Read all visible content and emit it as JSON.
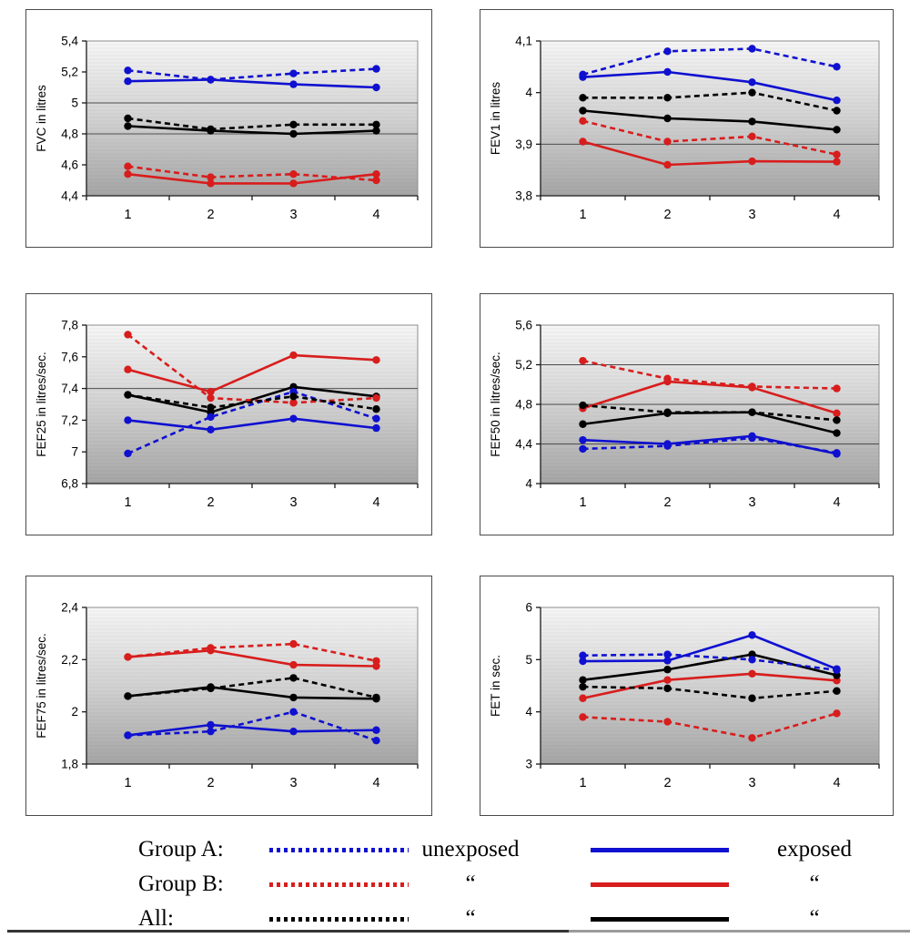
{
  "colors": {
    "group_a": "#0f10d0",
    "group_b": "#d81d1d",
    "all": "#000000",
    "grid": "#4d4d4d",
    "axis": "#1a1a1a",
    "plot_border": "#8c8c8c",
    "plot_top": "#f6f6f6",
    "plot_mid": "#d2d2d2",
    "plot_bottom": "#a5a5a5"
  },
  "legend": {
    "rows": [
      {
        "group_label": "Group A:",
        "dashed_label": "unexposed",
        "solid_label": "exposed",
        "color_key": "group_a"
      },
      {
        "group_label": "Group B:",
        "dashed_label": "“",
        "solid_label": "“",
        "color_key": "group_b"
      },
      {
        "group_label": "All:",
        "dashed_label": "“",
        "solid_label": "“",
        "color_key": "all"
      }
    ]
  },
  "chart_data": [
    {
      "type": "line",
      "id": "fvc",
      "title": "",
      "xlabel": "",
      "ylabel": "FVC in litres",
      "ylim": [
        4.4,
        5.4
      ],
      "yticks": [
        {
          "v": 4.4,
          "label": "4,4"
        },
        {
          "v": 4.6,
          "label": "4,6"
        },
        {
          "v": 4.8,
          "label": "4,8"
        },
        {
          "v": 5.0,
          "label": "5"
        },
        {
          "v": 5.2,
          "label": "5,2"
        },
        {
          "v": 5.4,
          "label": "5,4"
        }
      ],
      "gridlines": [
        4.8,
        5.0
      ],
      "categories": [
        "1",
        "2",
        "3",
        "4"
      ],
      "series": [
        {
          "name": "Group A unexposed",
          "color_key": "group_a",
          "style": "dashed",
          "values": [
            5.21,
            5.15,
            5.19,
            5.22
          ]
        },
        {
          "name": "Group A exposed",
          "color_key": "group_a",
          "style": "solid",
          "values": [
            5.14,
            5.15,
            5.12,
            5.1
          ]
        },
        {
          "name": "Group B unexposed",
          "color_key": "group_b",
          "style": "dashed",
          "values": [
            4.59,
            4.52,
            4.54,
            4.5
          ]
        },
        {
          "name": "Group B exposed",
          "color_key": "group_b",
          "style": "solid",
          "values": [
            4.54,
            4.48,
            4.48,
            4.54
          ]
        },
        {
          "name": "All unexposed",
          "color_key": "all",
          "style": "dashed",
          "values": [
            4.9,
            4.83,
            4.86,
            4.86
          ]
        },
        {
          "name": "All exposed",
          "color_key": "all",
          "style": "solid",
          "values": [
            4.85,
            4.82,
            4.8,
            4.82
          ]
        }
      ]
    },
    {
      "type": "line",
      "id": "fev1",
      "title": "",
      "xlabel": "",
      "ylabel": "FEV1 in litres",
      "ylim": [
        3.8,
        4.1
      ],
      "yticks": [
        {
          "v": 3.8,
          "label": "3,8"
        },
        {
          "v": 3.9,
          "label": "3,9"
        },
        {
          "v": 4.0,
          "label": "4"
        },
        {
          "v": 4.1,
          "label": "4,1"
        }
      ],
      "gridlines": [
        3.9
      ],
      "categories": [
        "1",
        "2",
        "3",
        "4"
      ],
      "series": [
        {
          "name": "Group A unexposed",
          "color_key": "group_a",
          "style": "dashed",
          "values": [
            4.035,
            4.08,
            4.085,
            4.05
          ]
        },
        {
          "name": "Group A exposed",
          "color_key": "group_a",
          "style": "solid",
          "values": [
            4.03,
            4.04,
            4.02,
            3.985
          ]
        },
        {
          "name": "Group B unexposed",
          "color_key": "group_b",
          "style": "dashed",
          "values": [
            3.945,
            3.905,
            3.915,
            3.88
          ]
        },
        {
          "name": "Group B exposed",
          "color_key": "group_b",
          "style": "solid",
          "values": [
            3.905,
            3.86,
            3.867,
            3.866
          ]
        },
        {
          "name": "All unexposed",
          "color_key": "all",
          "style": "dashed",
          "values": [
            3.99,
            3.99,
            4.0,
            3.965
          ]
        },
        {
          "name": "All exposed",
          "color_key": "all",
          "style": "solid",
          "values": [
            3.965,
            3.95,
            3.944,
            3.928
          ]
        }
      ]
    },
    {
      "type": "line",
      "id": "fef25",
      "title": "",
      "xlabel": "",
      "ylabel": "FEF25 in litres/sec.",
      "ylim": [
        6.8,
        7.8
      ],
      "yticks": [
        {
          "v": 6.8,
          "label": "6,8"
        },
        {
          "v": 7.0,
          "label": "7"
        },
        {
          "v": 7.2,
          "label": "7,2"
        },
        {
          "v": 7.4,
          "label": "7,4"
        },
        {
          "v": 7.6,
          "label": "7,6"
        },
        {
          "v": 7.8,
          "label": "7,8"
        }
      ],
      "gridlines": [
        7.4
      ],
      "categories": [
        "1",
        "2",
        "3",
        "4"
      ],
      "series": [
        {
          "name": "Group A unexposed",
          "color_key": "group_a",
          "style": "dashed",
          "values": [
            6.99,
            7.22,
            7.38,
            7.21
          ]
        },
        {
          "name": "Group A exposed",
          "color_key": "group_a",
          "style": "solid",
          "values": [
            7.2,
            7.14,
            7.21,
            7.15
          ]
        },
        {
          "name": "Group B unexposed",
          "color_key": "group_b",
          "style": "dashed",
          "values": [
            7.74,
            7.34,
            7.31,
            7.34
          ]
        },
        {
          "name": "Group B exposed",
          "color_key": "group_b",
          "style": "solid",
          "values": [
            7.52,
            7.38,
            7.61,
            7.58
          ]
        },
        {
          "name": "All unexposed",
          "color_key": "all",
          "style": "dashed",
          "values": [
            7.36,
            7.28,
            7.35,
            7.27
          ]
        },
        {
          "name": "All exposed",
          "color_key": "all",
          "style": "solid",
          "values": [
            7.36,
            7.25,
            7.41,
            7.35
          ]
        }
      ]
    },
    {
      "type": "line",
      "id": "fef50",
      "title": "",
      "xlabel": "",
      "ylabel": "FEF50 in litres/sec.",
      "ylim": [
        4.0,
        5.6
      ],
      "yticks": [
        {
          "v": 4.0,
          "label": "4"
        },
        {
          "v": 4.4,
          "label": "4,4"
        },
        {
          "v": 4.8,
          "label": "4,8"
        },
        {
          "v": 5.2,
          "label": "5,2"
        },
        {
          "v": 5.6,
          "label": "5,6"
        }
      ],
      "gridlines": [
        4.4,
        4.8,
        5.2
      ],
      "categories": [
        "1",
        "2",
        "3",
        "4"
      ],
      "series": [
        {
          "name": "Group A unexposed",
          "color_key": "group_a",
          "style": "dashed",
          "values": [
            4.35,
            4.38,
            4.46,
            4.31
          ]
        },
        {
          "name": "Group A exposed",
          "color_key": "group_a",
          "style": "solid",
          "values": [
            4.44,
            4.4,
            4.48,
            4.3
          ]
        },
        {
          "name": "Group B unexposed",
          "color_key": "group_b",
          "style": "dashed",
          "values": [
            5.24,
            5.06,
            4.98,
            4.96
          ]
        },
        {
          "name": "Group B exposed",
          "color_key": "group_b",
          "style": "solid",
          "values": [
            4.76,
            5.03,
            4.97,
            4.71
          ]
        },
        {
          "name": "All unexposed",
          "color_key": "all",
          "style": "dashed",
          "values": [
            4.79,
            4.72,
            4.72,
            4.64
          ]
        },
        {
          "name": "All exposed",
          "color_key": "all",
          "style": "solid",
          "values": [
            4.6,
            4.71,
            4.72,
            4.51
          ]
        }
      ]
    },
    {
      "type": "line",
      "id": "fef75",
      "title": "",
      "xlabel": "",
      "ylabel": "FEF75 in litres/sec.",
      "ylim": [
        1.8,
        2.4
      ],
      "yticks": [
        {
          "v": 1.8,
          "label": "1,8"
        },
        {
          "v": 2.0,
          "label": "2"
        },
        {
          "v": 2.2,
          "label": "2,2"
        },
        {
          "v": 2.4,
          "label": "2,4"
        }
      ],
      "gridlines": [],
      "categories": [
        "1",
        "2",
        "3",
        "4"
      ],
      "series": [
        {
          "name": "Group A unexposed",
          "color_key": "group_a",
          "style": "dashed",
          "values": [
            1.91,
            1.925,
            2.0,
            1.89
          ]
        },
        {
          "name": "Group A exposed",
          "color_key": "group_a",
          "style": "solid",
          "values": [
            1.91,
            1.95,
            1.925,
            1.93
          ]
        },
        {
          "name": "Group B unexposed",
          "color_key": "group_b",
          "style": "dashed",
          "values": [
            2.21,
            2.245,
            2.26,
            2.195
          ]
        },
        {
          "name": "Group B exposed",
          "color_key": "group_b",
          "style": "solid",
          "values": [
            2.21,
            2.235,
            2.18,
            2.175
          ]
        },
        {
          "name": "All unexposed",
          "color_key": "all",
          "style": "dashed",
          "values": [
            2.06,
            2.09,
            2.13,
            2.055
          ]
        },
        {
          "name": "All exposed",
          "color_key": "all",
          "style": "solid",
          "values": [
            2.06,
            2.095,
            2.055,
            2.05
          ]
        }
      ]
    },
    {
      "type": "line",
      "id": "fet",
      "title": "",
      "xlabel": "",
      "ylabel": "FET in sec.",
      "ylim": [
        3.0,
        6.0
      ],
      "yticks": [
        {
          "v": 3.0,
          "label": "3"
        },
        {
          "v": 4.0,
          "label": "4"
        },
        {
          "v": 5.0,
          "label": "5"
        },
        {
          "v": 6.0,
          "label": "6"
        }
      ],
      "gridlines": [],
      "categories": [
        "1",
        "2",
        "3",
        "4"
      ],
      "series": [
        {
          "name": "Group A unexposed",
          "color_key": "group_a",
          "style": "dashed",
          "values": [
            5.08,
            5.1,
            5.0,
            4.8
          ]
        },
        {
          "name": "Group A exposed",
          "color_key": "group_a",
          "style": "solid",
          "values": [
            4.97,
            4.98,
            5.47,
            4.82
          ]
        },
        {
          "name": "Group B unexposed",
          "color_key": "group_b",
          "style": "dashed",
          "values": [
            3.9,
            3.81,
            3.5,
            3.97
          ]
        },
        {
          "name": "Group B exposed",
          "color_key": "group_b",
          "style": "solid",
          "values": [
            4.26,
            4.61,
            4.73,
            4.6
          ]
        },
        {
          "name": "All unexposed",
          "color_key": "all",
          "style": "dashed",
          "values": [
            4.48,
            4.45,
            4.26,
            4.4
          ]
        },
        {
          "name": "All exposed",
          "color_key": "all",
          "style": "solid",
          "values": [
            4.61,
            4.81,
            5.1,
            4.7
          ]
        }
      ]
    }
  ]
}
